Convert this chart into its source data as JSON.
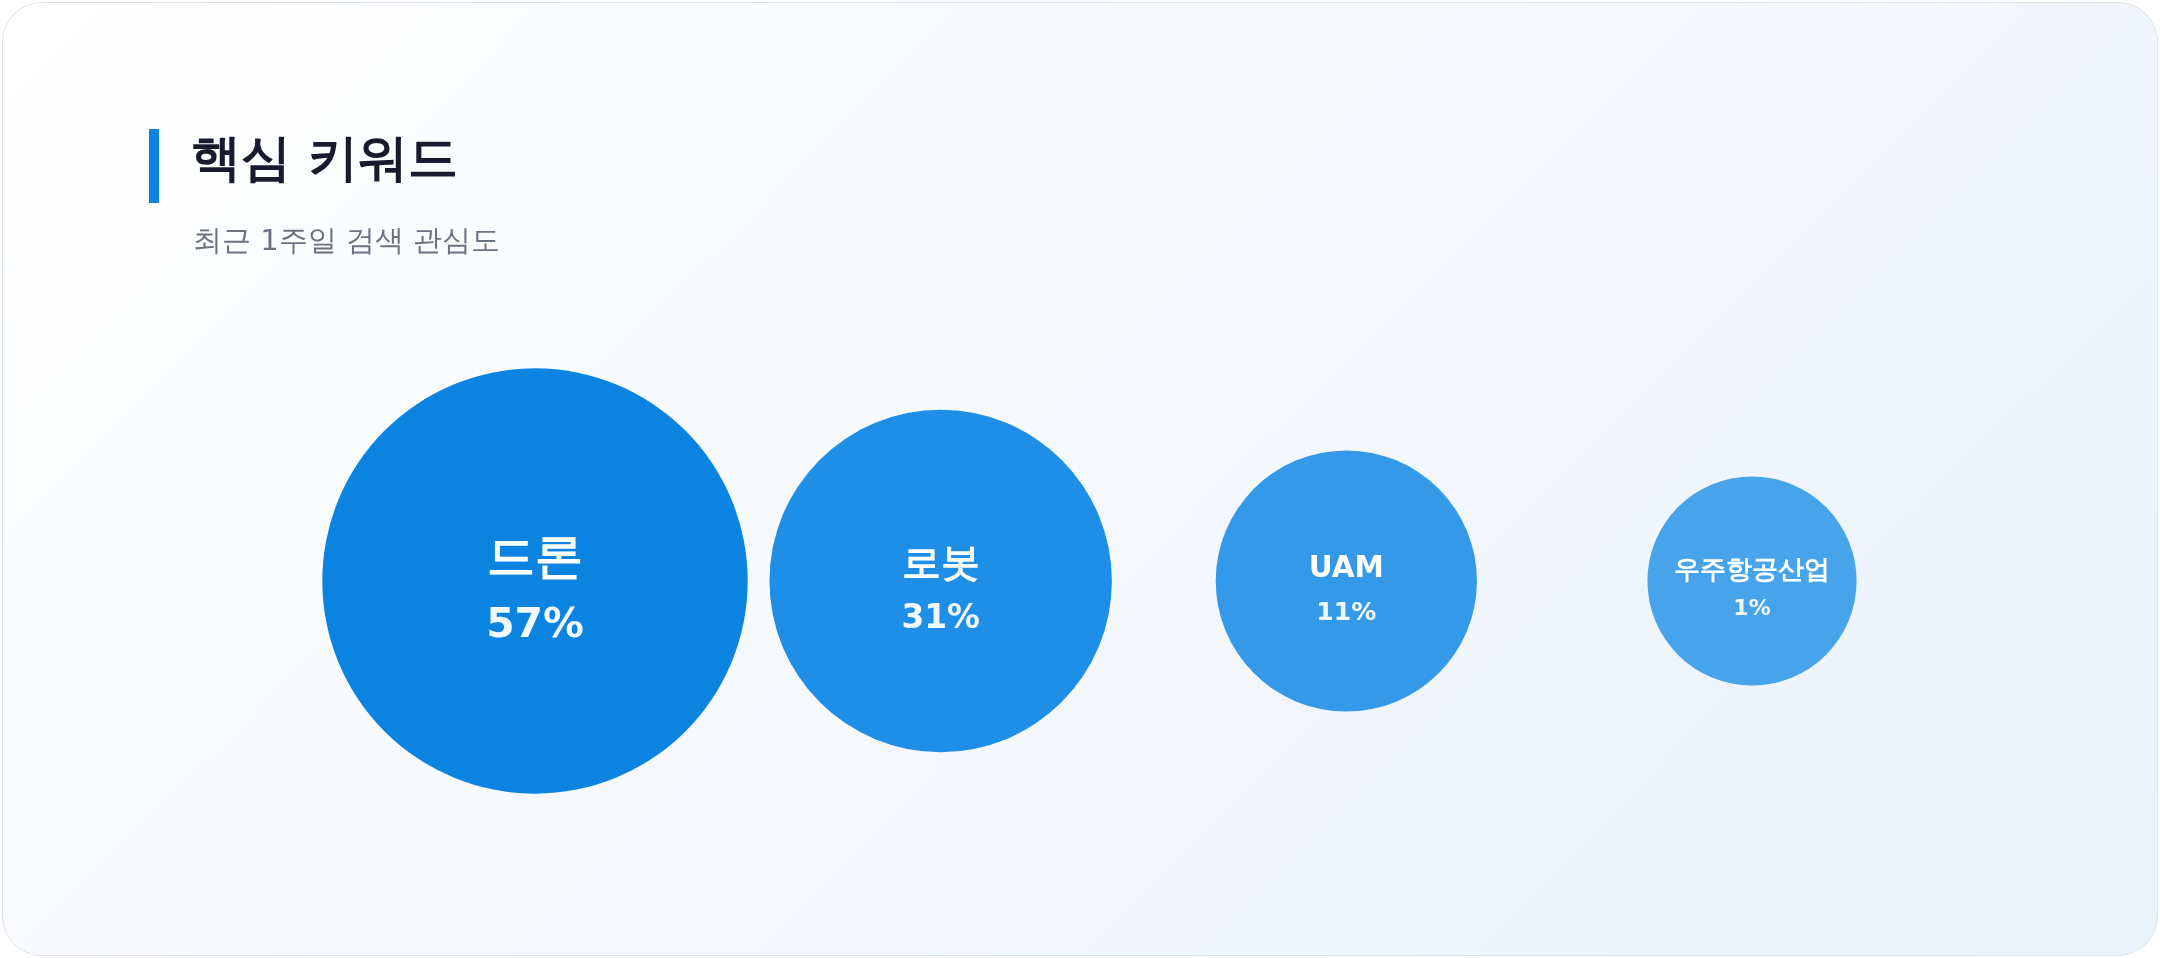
{
  "chart_data": {
    "type": "other",
    "title": "핵심 키워드",
    "subtitle": "최근 1주일 검색 관심도",
    "categories": [
      "드론",
      "로봇",
      "UAM",
      "우주항공산업"
    ],
    "values": [
      57,
      31,
      11,
      1
    ],
    "value_labels": [
      "57%",
      "31%",
      "11%",
      "1%"
    ],
    "colors": [
      "#0a84e0",
      "#1e8ee6",
      "#3399e8",
      "#47a3ea"
    ]
  }
}
